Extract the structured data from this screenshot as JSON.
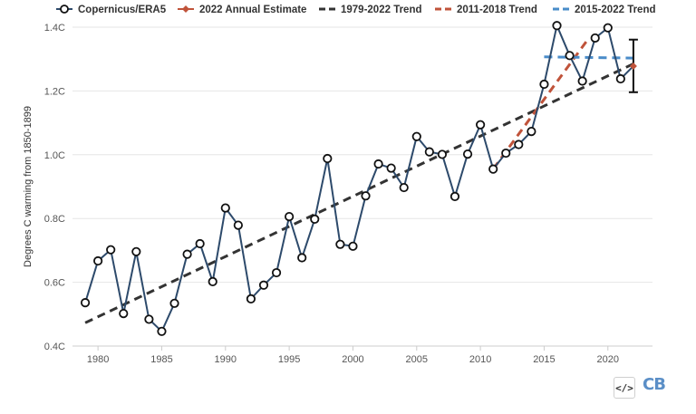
{
  "chart_data": {
    "type": "line",
    "ylabel": "Degrees C warming from 1850-1899",
    "xlim": [
      1978,
      2023.5
    ],
    "ylim": [
      0.4,
      1.4
    ],
    "xticks": [
      1980,
      1985,
      1990,
      1995,
      2000,
      2005,
      2010,
      2015,
      2020
    ],
    "yticks": [
      0.4,
      0.6,
      0.8,
      1.0,
      1.2,
      1.4
    ],
    "ytick_labels": [
      "0.4C",
      "0.6C",
      "0.8C",
      "1.0C",
      "1.2C",
      "1.4C"
    ],
    "grid": "horizontal",
    "legend_position": "top",
    "legend": [
      {
        "label": "Copernicus/ERA5",
        "style": "line-circle",
        "color": "#2d4a6b"
      },
      {
        "label": "2022 Annual Estimate",
        "style": "line-diamond",
        "color": "#c0533a"
      },
      {
        "label": "1979-2022 Trend",
        "style": "dashed",
        "color": "#333333"
      },
      {
        "label": "2011-2018 Trend",
        "style": "dashed",
        "color": "#c0533a"
      },
      {
        "label": "2015-2022 Trend",
        "style": "dashed",
        "color": "#4a8cc9"
      }
    ],
    "series": [
      {
        "name": "Copernicus/ERA5",
        "color": "#2d4a6b",
        "x": [
          1979,
          1980,
          1981,
          1982,
          1983,
          1984,
          1985,
          1986,
          1987,
          1988,
          1989,
          1990,
          1991,
          1992,
          1993,
          1994,
          1995,
          1996,
          1997,
          1998,
          1999,
          2000,
          2001,
          2002,
          2003,
          2004,
          2005,
          2006,
          2007,
          2008,
          2009,
          2010,
          2011,
          2012,
          2013,
          2014,
          2015,
          2016,
          2017,
          2018,
          2019,
          2020,
          2021
        ],
        "y": [
          0.536,
          0.667,
          0.702,
          0.502,
          0.696,
          0.484,
          0.446,
          0.534,
          0.688,
          0.721,
          0.602,
          0.833,
          0.779,
          0.548,
          0.591,
          0.63,
          0.806,
          0.677,
          0.798,
          0.988,
          0.719,
          0.713,
          0.871,
          0.971,
          0.958,
          0.897,
          1.057,
          1.009,
          1.001,
          0.869,
          1.002,
          1.094,
          0.955,
          1.005,
          1.032,
          1.073,
          1.221,
          1.405,
          1.311,
          1.231,
          1.366,
          1.398,
          1.238
        ]
      },
      {
        "name": "2022 Annual Estimate",
        "color": "#c0533a",
        "x": [
          2022
        ],
        "y": [
          1.278
        ],
        "error": [
          1.196,
          1.361
        ]
      },
      {
        "name": "1979-2022 Trend",
        "color": "#333333",
        "x": [
          1979,
          2022
        ],
        "y": [
          0.473,
          1.285
        ]
      },
      {
        "name": "2011-2018 Trend",
        "color": "#c0533a",
        "x": [
          2011,
          2018.4
        ],
        "y": [
          0.955,
          1.36
        ]
      },
      {
        "name": "2015-2022 Trend",
        "color": "#4a8cc9",
        "x": [
          2015,
          2022
        ],
        "y": [
          1.307,
          1.303
        ]
      }
    ]
  },
  "footer": {
    "embed_label": "</>",
    "logo_text": "CB"
  }
}
